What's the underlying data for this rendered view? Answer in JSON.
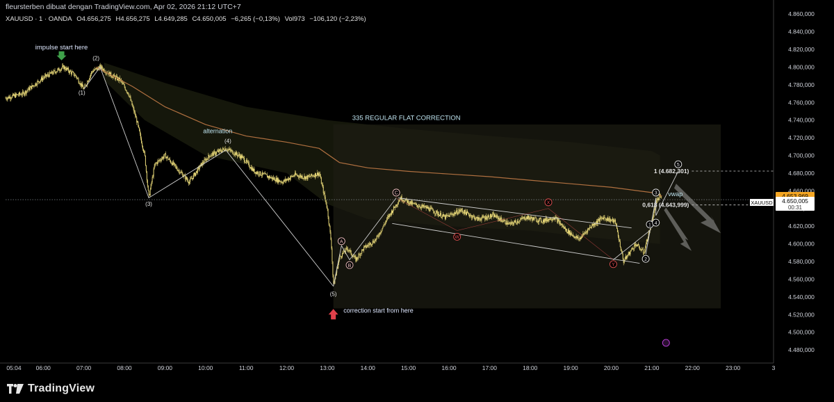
{
  "header": {
    "credit": "fleursterben dibuat dengan TradingView.com, Apr 02, 2026 21:12 UTC+7",
    "symbol": "XAUUSD · 1 · OANDA",
    "open": "O4.656,275",
    "high": "H4.656,275",
    "low": "L4.649,285",
    "close": "C4.650,005",
    "change": "−6,265 (−0,13%)",
    "vol": "Vol973",
    "vol_change": "−106,120 (−2,23%)"
  },
  "brand": {
    "name": "TradingView"
  },
  "colors": {
    "background": "#000000",
    "candle": "#e8d878",
    "vwap": "#b07040",
    "wave_line": "#cfcfcf",
    "green_arrow": "#3fa14a",
    "red_arrow": "#e0404a",
    "channel_red": "#e05050",
    "last_price_bg": "#f5a623",
    "current_price_bg": "#ffffff"
  },
  "price_scale": {
    "last_price": "4.653,969",
    "current_price": "4.650,005",
    "countdown": "00:31",
    "symbol_tag": "XAUUSD"
  },
  "chart_data": {
    "type": "candlestick",
    "title": "",
    "x_ticks": [
      "05:04",
      "06:00",
      "07:00",
      "08:00",
      "09:00",
      "10:00",
      "11:00",
      "12:00",
      "13:00",
      "14:00",
      "15:00",
      "16:00",
      "17:00",
      "18:00",
      "19:00",
      "20:00",
      "21:00",
      "22:00",
      "23:00",
      "3"
    ],
    "y_ticks": [
      "4.860,000",
      "4.840,000",
      "4.820,000",
      "4.800,000",
      "4.780,000",
      "4.760,000",
      "4.740,000",
      "4.720,000",
      "4.700,000",
      "4.680,000",
      "4.660,000",
      "4.640,000",
      "4.620,000",
      "4.600,000",
      "4.580,000",
      "4.560,000",
      "4.540,000",
      "4.520,000",
      "4.500,000",
      "4.480,000"
    ],
    "ylim": [
      4473,
      4868
    ],
    "xlim_hours": [
      5.07,
      24.0
    ],
    "price_path": [
      [
        5.07,
        4765
      ],
      [
        5.5,
        4770
      ],
      [
        6.0,
        4788
      ],
      [
        6.5,
        4800
      ],
      [
        6.8,
        4790
      ],
      [
        7.0,
        4775
      ],
      [
        7.2,
        4795
      ],
      [
        7.4,
        4800
      ],
      [
        7.7,
        4790
      ],
      [
        7.9,
        4785
      ],
      [
        8.1,
        4770
      ],
      [
        8.3,
        4740
      ],
      [
        8.5,
        4700
      ],
      [
        8.6,
        4652
      ],
      [
        8.75,
        4690
      ],
      [
        9.0,
        4700
      ],
      [
        9.3,
        4685
      ],
      [
        9.6,
        4670
      ],
      [
        9.9,
        4690
      ],
      [
        10.1,
        4700
      ],
      [
        10.5,
        4708
      ],
      [
        10.9,
        4698
      ],
      [
        11.2,
        4682
      ],
      [
        11.6,
        4675
      ],
      [
        11.9,
        4670
      ],
      [
        12.2,
        4678
      ],
      [
        12.5,
        4675
      ],
      [
        12.8,
        4680
      ],
      [
        13.0,
        4640
      ],
      [
        13.1,
        4600
      ],
      [
        13.15,
        4552
      ],
      [
        13.3,
        4585
      ],
      [
        13.5,
        4595
      ],
      [
        13.7,
        4582
      ],
      [
        13.9,
        4595
      ],
      [
        14.2,
        4605
      ],
      [
        14.5,
        4630
      ],
      [
        14.8,
        4652
      ],
      [
        15.1,
        4645
      ],
      [
        15.5,
        4640
      ],
      [
        15.9,
        4630
      ],
      [
        16.3,
        4638
      ],
      [
        16.7,
        4628
      ],
      [
        17.1,
        4632
      ],
      [
        17.5,
        4622
      ],
      [
        17.9,
        4630
      ],
      [
        18.3,
        4626
      ],
      [
        18.6,
        4630
      ],
      [
        18.9,
        4615
      ],
      [
        19.2,
        4605
      ],
      [
        19.5,
        4620
      ],
      [
        19.8,
        4630
      ],
      [
        20.1,
        4625
      ],
      [
        20.3,
        4580
      ],
      [
        20.6,
        4600
      ],
      [
        20.8,
        4590
      ],
      [
        21.0,
        4625
      ],
      [
        21.1,
        4645
      ],
      [
        21.2,
        4655
      ],
      [
        21.25,
        4650
      ]
    ],
    "vwap": [
      [
        7.3,
        4800
      ],
      [
        8.2,
        4778
      ],
      [
        9.0,
        4755
      ],
      [
        10.0,
        4735
      ],
      [
        11.0,
        4722
      ],
      [
        12.0,
        4715
      ],
      [
        12.8,
        4708
      ],
      [
        13.3,
        4692
      ],
      [
        14.0,
        4686
      ],
      [
        15.0,
        4682
      ],
      [
        16.0,
        4679
      ],
      [
        17.0,
        4676
      ],
      [
        18.0,
        4672
      ],
      [
        19.0,
        4668
      ],
      [
        20.0,
        4664
      ],
      [
        21.0,
        4658
      ],
      [
        21.25,
        4654
      ]
    ],
    "impulse_wave": {
      "points": [
        [
          7.0,
          4775
        ],
        [
          7.4,
          4800
        ],
        [
          8.6,
          4652
        ],
        [
          10.5,
          4706
        ],
        [
          13.15,
          4552
        ]
      ],
      "labels": [
        {
          "text": "(1)",
          "x": 6.95,
          "y": 4769
        },
        {
          "text": "(2)",
          "x": 7.3,
          "y": 4808
        },
        {
          "text": "(3)",
          "x": 8.6,
          "y": 4643
        },
        {
          "text": "(4)",
          "x": 10.55,
          "y": 4714
        },
        {
          "text": "(5)",
          "x": 13.15,
          "y": 4541
        }
      ]
    },
    "correction_labels": [
      {
        "text": "A",
        "x": 13.35,
        "y": 4603
      },
      {
        "text": "B",
        "x": 13.55,
        "y": 4576
      },
      {
        "text": "C",
        "x": 14.7,
        "y": 4658
      }
    ],
    "wxy_labels": [
      {
        "text": "W",
        "x": 16.2,
        "y": 4608
      },
      {
        "text": "X",
        "x": 18.45,
        "y": 4647
      },
      {
        "text": "Y",
        "x": 20.05,
        "y": 4577
      }
    ],
    "final_wave_labels": [
      {
        "text": "1",
        "x": 20.95,
        "y": 4622
      },
      {
        "text": "2",
        "x": 20.85,
        "y": 4583
      },
      {
        "text": "3",
        "x": 21.1,
        "y": 4658
      },
      {
        "text": "4",
        "x": 21.1,
        "y": 4624
      },
      {
        "text": "5",
        "x": 21.65,
        "y": 4690
      }
    ],
    "fib_levels": [
      {
        "label": "1 (4.682,301)",
        "value": 4682.301,
        "x_start": 21.3
      },
      {
        "label": "0,618 (4.643,999)",
        "value": 4643.999,
        "x_start": 21.3
      }
    ],
    "annotations": {
      "impulse_start": "impulse start here",
      "correction_start": "correction start from here",
      "alternation": "alternation",
      "flat_title": "335 REGULAR FLAT CORRECTION",
      "vwap_label": "vwap"
    },
    "box": {
      "x": [
        13.15,
        22.7
      ],
      "y": [
        4527,
        4735
      ]
    },
    "channel_upper": [
      [
        14.75,
        4652
      ],
      [
        20.5,
        4618
      ]
    ],
    "channel_lower": [
      [
        14.6,
        4623
      ],
      [
        20.7,
        4578
      ]
    ]
  }
}
